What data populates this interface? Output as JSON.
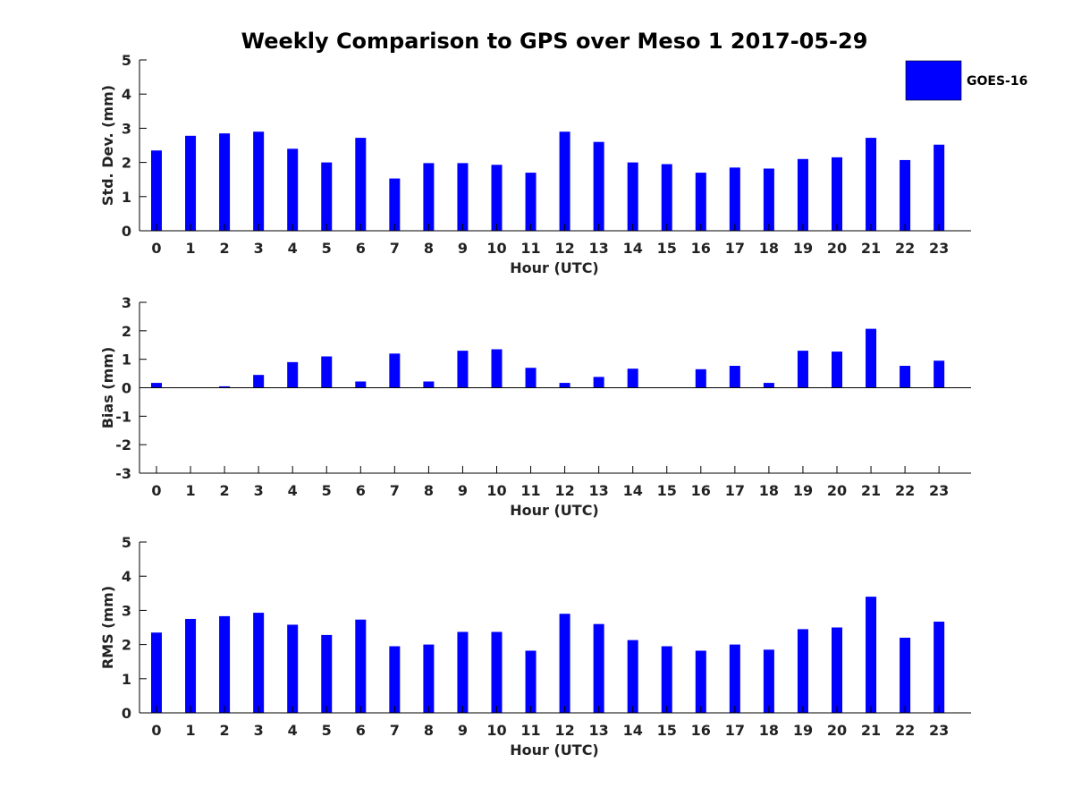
{
  "chart_data": {
    "title": "Weekly Comparison to GPS over Meso 1 2017-05-29",
    "legend": {
      "label": "GOES-16",
      "color": "#0000ff",
      "placement": "top-right"
    },
    "categories": [
      "0",
      "1",
      "2",
      "3",
      "4",
      "5",
      "6",
      "7",
      "8",
      "9",
      "10",
      "11",
      "12",
      "13",
      "14",
      "15",
      "16",
      "17",
      "18",
      "19",
      "20",
      "21",
      "22",
      "23"
    ],
    "panels": [
      {
        "type": "bar",
        "xlabel": "Hour (UTC)",
        "ylabel": "Std. Dev. (mm)",
        "ylim": [
          0,
          5
        ],
        "yticks": [
          "0",
          "1",
          "2",
          "3",
          "4",
          "5"
        ],
        "series": [
          {
            "name": "GOES-16",
            "values": [
              2.35,
              2.78,
              2.85,
              2.9,
              2.4,
              2.0,
              2.72,
              1.53,
              1.98,
              1.98,
              1.93,
              1.7,
              2.9,
              2.6,
              2.0,
              1.95,
              1.7,
              1.85,
              1.82,
              2.1,
              2.15,
              2.72,
              2.07,
              2.52
            ]
          }
        ]
      },
      {
        "type": "bar",
        "xlabel": "Hour (UTC)",
        "ylabel": "Bias (mm)",
        "ylim": [
          -3,
          3
        ],
        "yticks": [
          "-3",
          "-2",
          "-1",
          "0",
          "1",
          "2",
          "3"
        ],
        "series": [
          {
            "name": "GOES-16",
            "values": [
              0.17,
              0.0,
              0.05,
              0.45,
              0.9,
              1.1,
              0.22,
              1.2,
              0.22,
              1.3,
              1.35,
              0.7,
              0.17,
              0.38,
              0.67,
              0.0,
              0.65,
              0.77,
              0.17,
              1.3,
              1.27,
              2.07,
              0.77,
              0.95
            ]
          }
        ]
      },
      {
        "type": "bar",
        "xlabel": "Hour (UTC)",
        "ylabel": "RMS (mm)",
        "ylim": [
          0,
          5
        ],
        "yticks": [
          "0",
          "1",
          "2",
          "3",
          "4",
          "5"
        ],
        "series": [
          {
            "name": "GOES-16",
            "values": [
              2.35,
              2.75,
              2.83,
              2.93,
              2.58,
              2.28,
              2.73,
              1.95,
              2.0,
              2.37,
              2.37,
              1.82,
              2.9,
              2.6,
              2.13,
              1.95,
              1.82,
              2.0,
              1.85,
              2.45,
              2.5,
              3.4,
              2.2,
              2.67
            ]
          }
        ]
      }
    ]
  }
}
